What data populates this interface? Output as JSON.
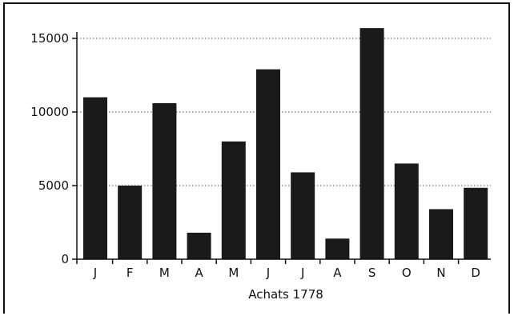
{
  "chart_data": {
    "type": "bar",
    "categories": [
      "J",
      "F",
      "M",
      "A",
      "M",
      "J",
      "J",
      "A",
      "S",
      "O",
      "N",
      "D"
    ],
    "values": [
      11000,
      5000,
      10600,
      1800,
      8000,
      12900,
      5900,
      1400,
      15700,
      6500,
      3400,
      4850
    ],
    "title": "",
    "xlabel": "Achats 1778",
    "ylabel": "",
    "ylim": [
      0,
      16000
    ],
    "yticks": [
      0,
      5000,
      10000,
      15000
    ],
    "grid": "horizontal dotted",
    "legend": "none",
    "bar_color": "#1a1a1a"
  }
}
